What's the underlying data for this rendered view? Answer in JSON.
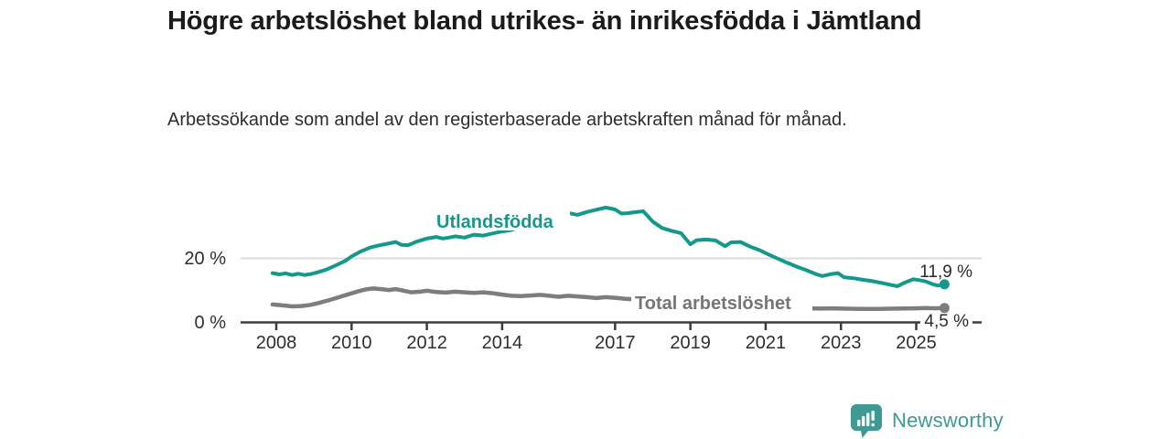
{
  "header": {
    "title": "Högre arbetslöshet bland utrikes- än inrikesfödda i Jämtland",
    "subtitle": "Arbetssökande som andel av den registerbaserade arbetskraften månad för månad."
  },
  "chart_data": {
    "type": "line",
    "title": "Högre arbetslöshet bland utrikes- än inrikesfödda i Jämtland",
    "subtitle": "Arbetssökande som andel av den registerbaserade arbetskraften månad för månad.",
    "unit": "percent",
    "x_axis": {
      "range": [
        2007.9,
        2026.6
      ],
      "tick_years": [
        2008,
        2010,
        2012,
        2014,
        2017,
        2019,
        2021,
        2023,
        2025
      ]
    },
    "y_axis": {
      "range": [
        0,
        38
      ],
      "ticks": [
        {
          "value": 20,
          "label": "20 %"
        },
        {
          "value": 0,
          "label": "0 %"
        }
      ],
      "gridline_at": 20
    },
    "legend_position": "inline-labels-on-lines",
    "grid": "single light horizontal gridline at 20 %",
    "series": [
      {
        "name": "Utlandsfödda",
        "color": "#15988c",
        "end_label": "11,9 %",
        "end_value": 11.9,
        "points": [
          [
            2007.9,
            15.4
          ],
          [
            2008.08,
            15.0
          ],
          [
            2008.25,
            15.3
          ],
          [
            2008.42,
            14.8
          ],
          [
            2008.58,
            15.2
          ],
          [
            2008.75,
            14.8
          ],
          [
            2008.92,
            15.1
          ],
          [
            2009.08,
            15.6
          ],
          [
            2009.33,
            16.5
          ],
          [
            2009.58,
            17.8
          ],
          [
            2009.83,
            19.2
          ],
          [
            2010.0,
            20.6
          ],
          [
            2010.25,
            22.2
          ],
          [
            2010.5,
            23.4
          ],
          [
            2010.75,
            24.1
          ],
          [
            2011.0,
            24.7
          ],
          [
            2011.17,
            25.1
          ],
          [
            2011.33,
            24.2
          ],
          [
            2011.5,
            24.1
          ],
          [
            2011.75,
            25.3
          ],
          [
            2012.0,
            26.2
          ],
          [
            2012.25,
            26.7
          ],
          [
            2012.42,
            26.2
          ],
          [
            2012.58,
            26.5
          ],
          [
            2012.75,
            26.9
          ],
          [
            2013.0,
            26.5
          ],
          [
            2013.25,
            27.4
          ],
          [
            2013.5,
            27.1
          ],
          [
            2013.75,
            27.8
          ],
          [
            2014.0,
            28.4
          ],
          [
            2014.25,
            28.9
          ],
          [
            2014.5,
            29.9
          ],
          [
            2014.75,
            30.7
          ],
          [
            2015.0,
            31.6
          ],
          [
            2015.25,
            32.4
          ],
          [
            2015.5,
            33.3
          ],
          [
            2015.75,
            34.2
          ],
          [
            2016.0,
            33.6
          ],
          [
            2016.25,
            34.5
          ],
          [
            2016.5,
            35.2
          ],
          [
            2016.75,
            35.9
          ],
          [
            2017.0,
            35.3
          ],
          [
            2017.17,
            34.0
          ],
          [
            2017.33,
            34.1
          ],
          [
            2017.5,
            34.4
          ],
          [
            2017.75,
            34.7
          ],
          [
            2018.0,
            31.5
          ],
          [
            2018.25,
            29.5
          ],
          [
            2018.5,
            28.6
          ],
          [
            2018.75,
            27.9
          ],
          [
            2019.0,
            24.4
          ],
          [
            2019.17,
            25.7
          ],
          [
            2019.42,
            25.9
          ],
          [
            2019.67,
            25.6
          ],
          [
            2019.92,
            23.8
          ],
          [
            2020.08,
            25.0
          ],
          [
            2020.33,
            25.1
          ],
          [
            2020.58,
            23.7
          ],
          [
            2020.83,
            22.6
          ],
          [
            2021.08,
            21.2
          ],
          [
            2021.33,
            19.9
          ],
          [
            2021.58,
            18.6
          ],
          [
            2021.83,
            17.4
          ],
          [
            2022.08,
            16.3
          ],
          [
            2022.33,
            15.1
          ],
          [
            2022.5,
            14.5
          ],
          [
            2022.75,
            15.1
          ],
          [
            2022.92,
            15.4
          ],
          [
            2023.08,
            14.1
          ],
          [
            2023.33,
            13.8
          ],
          [
            2023.58,
            13.3
          ],
          [
            2023.83,
            12.9
          ],
          [
            2024.08,
            12.3
          ],
          [
            2024.33,
            11.7
          ],
          [
            2024.5,
            11.3
          ],
          [
            2024.67,
            12.3
          ],
          [
            2024.92,
            13.5
          ],
          [
            2025.08,
            13.2
          ],
          [
            2025.25,
            12.8
          ],
          [
            2025.42,
            12.0
          ],
          [
            2025.58,
            11.5
          ],
          [
            2025.75,
            11.9
          ]
        ]
      },
      {
        "name": "Total arbetslöshet",
        "color": "#7d7d7d",
        "end_label": "4,5 %",
        "end_value": 4.5,
        "points": [
          [
            2007.9,
            5.6
          ],
          [
            2008.17,
            5.3
          ],
          [
            2008.42,
            5.0
          ],
          [
            2008.67,
            5.1
          ],
          [
            2008.92,
            5.5
          ],
          [
            2009.17,
            6.2
          ],
          [
            2009.42,
            7.0
          ],
          [
            2009.67,
            7.9
          ],
          [
            2009.92,
            8.8
          ],
          [
            2010.17,
            9.7
          ],
          [
            2010.42,
            10.4
          ],
          [
            2010.58,
            10.6
          ],
          [
            2010.83,
            10.3
          ],
          [
            2011.0,
            10.1
          ],
          [
            2011.17,
            10.4
          ],
          [
            2011.42,
            9.8
          ],
          [
            2011.58,
            9.4
          ],
          [
            2011.83,
            9.6
          ],
          [
            2012.0,
            9.9
          ],
          [
            2012.25,
            9.5
          ],
          [
            2012.5,
            9.3
          ],
          [
            2012.75,
            9.6
          ],
          [
            2013.0,
            9.4
          ],
          [
            2013.25,
            9.2
          ],
          [
            2013.5,
            9.4
          ],
          [
            2013.75,
            9.1
          ],
          [
            2014.0,
            8.7
          ],
          [
            2014.25,
            8.3
          ],
          [
            2014.5,
            8.2
          ],
          [
            2014.75,
            8.4
          ],
          [
            2015.0,
            8.6
          ],
          [
            2015.25,
            8.3
          ],
          [
            2015.5,
            8.0
          ],
          [
            2015.75,
            8.3
          ],
          [
            2016.0,
            8.1
          ],
          [
            2016.25,
            7.9
          ],
          [
            2016.5,
            7.6
          ],
          [
            2016.75,
            7.9
          ],
          [
            2017.0,
            7.7
          ],
          [
            2017.25,
            7.4
          ],
          [
            2017.5,
            7.2
          ],
          [
            2017.75,
            6.5
          ],
          [
            2018.0,
            6.0
          ],
          [
            2018.5,
            5.5
          ],
          [
            2019.0,
            5.1
          ],
          [
            2019.5,
            4.9
          ],
          [
            2020.0,
            5.2
          ],
          [
            2020.42,
            5.6
          ],
          [
            2021.0,
            5.1
          ],
          [
            2021.5,
            4.7
          ],
          [
            2022.0,
            4.4
          ],
          [
            2022.5,
            4.3
          ],
          [
            2022.75,
            4.4
          ],
          [
            2023.0,
            4.3
          ],
          [
            2023.5,
            4.2
          ],
          [
            2024.0,
            4.2
          ],
          [
            2024.5,
            4.3
          ],
          [
            2025.0,
            4.4
          ],
          [
            2025.25,
            4.5
          ],
          [
            2025.5,
            4.4
          ],
          [
            2025.75,
            4.5
          ]
        ]
      }
    ],
    "colors": {
      "accent_teal": "#15988c",
      "series_gray": "#7d7d7d",
      "axis": "#3c3c3c",
      "gridline": "#dcdcdc"
    }
  },
  "footer": {
    "brand_name": "Newsworthy",
    "brand_color": "#3e9a92",
    "logo_icon": "bar-chart-speech-bubble-icon"
  }
}
